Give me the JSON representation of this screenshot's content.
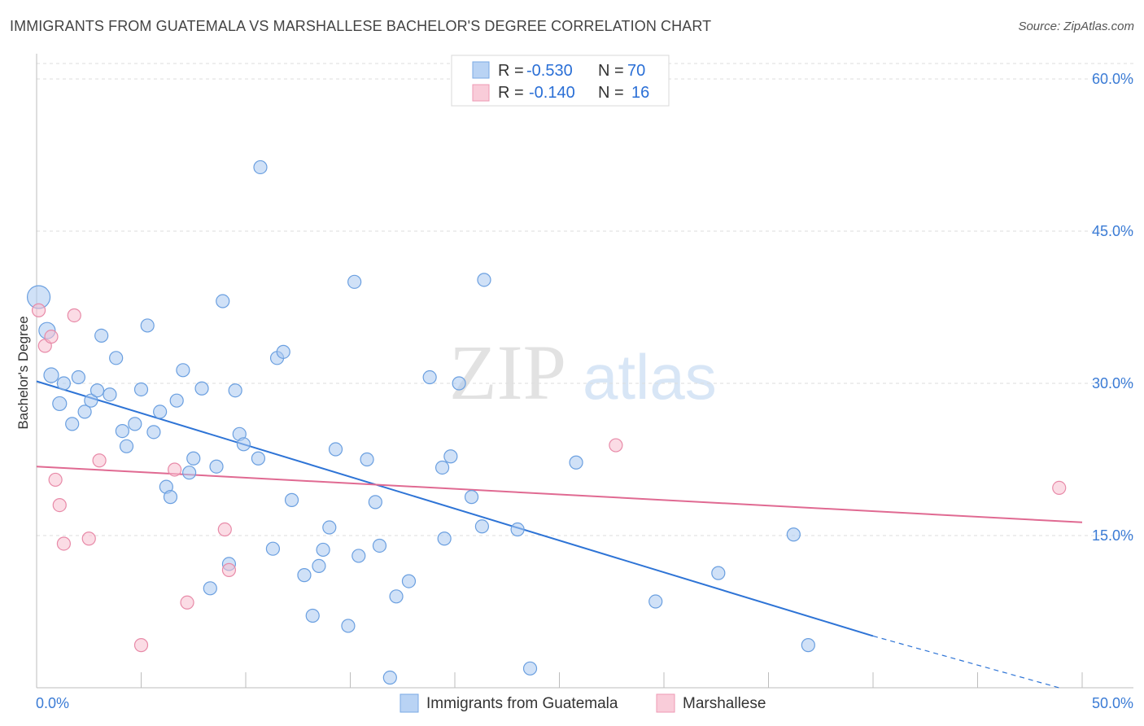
{
  "header": {
    "title": "IMMIGRANTS FROM GUATEMALA VS MARSHALLESE BACHELOR'S DEGREE CORRELATION CHART",
    "source": "Source: ZipAtlas.com"
  },
  "watermark": {
    "zip": "ZIP",
    "atlas": "atlas"
  },
  "colors": {
    "blue_fill": "#a9c8f0",
    "blue_stroke": "#6a9fe0",
    "blue_line": "#2e74d6",
    "pink_fill": "#f7bfd0",
    "pink_stroke": "#e88aa8",
    "pink_line": "#e06a92",
    "tick_text": "#3a7bd5",
    "grid": "#dddddd"
  },
  "legend_top": {
    "rows": [
      {
        "r_label": "R =",
        "r_value": "-0.530",
        "n_label": "N =",
        "n_value": "70"
      },
      {
        "r_label": "R =",
        "r_value": "-0.140",
        "n_label": "N =",
        "n_value": "16"
      }
    ]
  },
  "legend_bottom": {
    "items": [
      "Immigrants from Guatemala",
      "Marshallese"
    ]
  },
  "chart_data": {
    "type": "scatter",
    "title": "IMMIGRANTS FROM GUATEMALA VS MARSHALLESE BACHELOR'S DEGREE CORRELATION CHART",
    "xlabel": "",
    "ylabel": "Bachelor's Degree",
    "xlim": [
      0,
      50
    ],
    "ylim": [
      0,
      62
    ],
    "x_tick_labels": [
      "0.0%",
      "50.0%"
    ],
    "y_ticks": [
      15,
      30,
      45,
      60
    ],
    "y_tick_labels": [
      "15.0%",
      "30.0%",
      "45.0%",
      "60.0%"
    ],
    "grid": "horizontal dashed",
    "legend_position": "top-center",
    "series": [
      {
        "name": "Immigrants from Guatemala",
        "r": -0.53,
        "n": 70,
        "trend": {
          "x0": 0.0,
          "y0": 30.2,
          "x1": 40.0,
          "y1": 5.1,
          "dashed_to_x": 48.9,
          "dashed_to_y": 0.0
        },
        "points": [
          [
            0.1,
            38.5,
            28
          ],
          [
            0.5,
            35.2,
            20
          ],
          [
            0.7,
            30.8,
            18
          ],
          [
            1.1,
            28.0,
            17
          ],
          [
            1.3,
            30.0,
            16
          ],
          [
            1.7,
            26.0,
            16
          ],
          [
            2.0,
            30.6,
            16
          ],
          [
            2.3,
            27.2,
            16
          ],
          [
            2.6,
            28.3,
            16
          ],
          [
            2.9,
            29.3,
            16
          ],
          [
            3.1,
            34.7,
            16
          ],
          [
            3.5,
            28.9,
            16
          ],
          [
            3.8,
            32.5,
            16
          ],
          [
            4.1,
            25.3,
            16
          ],
          [
            4.3,
            23.8,
            16
          ],
          [
            4.7,
            26.0,
            16
          ],
          [
            5.0,
            29.4,
            16
          ],
          [
            5.3,
            35.7,
            16
          ],
          [
            5.6,
            25.2,
            16
          ],
          [
            5.9,
            27.2,
            16
          ],
          [
            6.2,
            19.8,
            16
          ],
          [
            6.4,
            18.8,
            16
          ],
          [
            6.7,
            28.3,
            16
          ],
          [
            7.0,
            31.3,
            16
          ],
          [
            7.3,
            21.2,
            16
          ],
          [
            7.5,
            22.6,
            16
          ],
          [
            7.9,
            29.5,
            16
          ],
          [
            8.3,
            9.8,
            16
          ],
          [
            8.6,
            21.8,
            16
          ],
          [
            8.9,
            38.1,
            16
          ],
          [
            9.2,
            12.2,
            16
          ],
          [
            9.5,
            29.3,
            16
          ],
          [
            9.7,
            25.0,
            16
          ],
          [
            9.9,
            24.0,
            16
          ],
          [
            10.6,
            22.6,
            16
          ],
          [
            10.7,
            51.3,
            16
          ],
          [
            11.3,
            13.7,
            16
          ],
          [
            11.5,
            32.5,
            16
          ],
          [
            11.8,
            33.1,
            16
          ],
          [
            12.2,
            18.5,
            16
          ],
          [
            12.8,
            11.1,
            16
          ],
          [
            13.2,
            7.1,
            16
          ],
          [
            13.5,
            12.0,
            16
          ],
          [
            13.7,
            13.6,
            16
          ],
          [
            14.0,
            15.8,
            16
          ],
          [
            14.3,
            23.5,
            16
          ],
          [
            14.9,
            6.1,
            16
          ],
          [
            15.2,
            40.0,
            16
          ],
          [
            15.4,
            13.0,
            16
          ],
          [
            15.8,
            22.5,
            16
          ],
          [
            16.2,
            18.3,
            16
          ],
          [
            16.4,
            14.0,
            16
          ],
          [
            16.9,
            1.0,
            16
          ],
          [
            17.2,
            9.0,
            16
          ],
          [
            17.8,
            10.5,
            16
          ],
          [
            18.8,
            30.6,
            16
          ],
          [
            19.4,
            21.7,
            16
          ],
          [
            19.5,
            14.7,
            16
          ],
          [
            19.8,
            22.8,
            16
          ],
          [
            20.2,
            30.0,
            16
          ],
          [
            20.8,
            18.8,
            16
          ],
          [
            21.3,
            15.9,
            16
          ],
          [
            21.4,
            40.2,
            16
          ],
          [
            23.6,
            1.9,
            16
          ],
          [
            23.0,
            15.6,
            16
          ],
          [
            25.8,
            22.2,
            16
          ],
          [
            29.6,
            8.5,
            16
          ],
          [
            32.6,
            11.3,
            16
          ],
          [
            36.2,
            15.1,
            16
          ],
          [
            36.9,
            4.2,
            16
          ]
        ]
      },
      {
        "name": "Marshallese",
        "r": -0.14,
        "n": 16,
        "trend": {
          "x0": 0.0,
          "y0": 21.8,
          "x1": 50.0,
          "y1": 16.3
        },
        "points": [
          [
            0.1,
            37.2,
            16
          ],
          [
            0.4,
            33.7,
            16
          ],
          [
            0.7,
            34.6,
            16
          ],
          [
            0.9,
            20.5,
            16
          ],
          [
            1.1,
            18.0,
            16
          ],
          [
            1.3,
            14.2,
            16
          ],
          [
            1.8,
            36.7,
            16
          ],
          [
            2.5,
            14.7,
            16
          ],
          [
            3.0,
            22.4,
            16
          ],
          [
            5.0,
            4.2,
            16
          ],
          [
            6.6,
            21.5,
            16
          ],
          [
            7.2,
            8.4,
            16
          ],
          [
            9.0,
            15.6,
            16
          ],
          [
            9.2,
            11.6,
            16
          ],
          [
            27.7,
            23.9,
            16
          ],
          [
            48.9,
            19.7,
            16
          ]
        ]
      }
    ]
  }
}
